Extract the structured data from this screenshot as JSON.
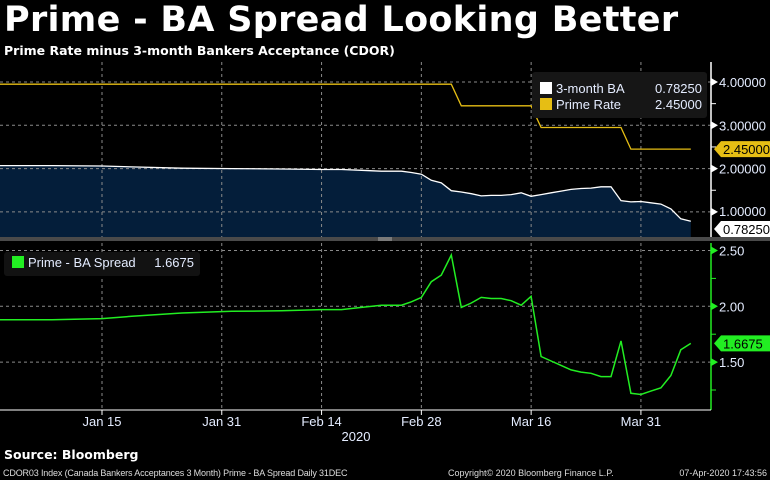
{
  "title": "Prime - BA Spread Looking Better",
  "subtitle": "Prime Rate minus 3-month Bankers Acceptance (CDOR)",
  "source": "Source: Bloomberg",
  "footer": {
    "description": "CDOR03 Index (Canada Bankers Acceptances 3 Month) Prime - BA Spread  Daily 31DEC",
    "copyright": "Copyright© 2020 Bloomberg Finance L.P.",
    "timestamp": "07-Apr-2020 17:43:56"
  },
  "chart_data": [
    {
      "type": "line",
      "panel": "upper",
      "ylim": [
        0.45,
        4.45
      ],
      "y_ticks": [
        "4.00000",
        "3.00000",
        "2.00000",
        "1.00000"
      ],
      "y_tick_values": [
        4,
        3,
        2,
        1
      ],
      "grid": true,
      "legend_position": "top-right",
      "series": [
        {
          "name": "3-month BA",
          "last_label": "0.78250",
          "color": "#ffffff",
          "fill": "#041e3a",
          "points": [
            [
              "2020-01-01",
              2.07
            ],
            [
              "2020-01-08",
              2.07
            ],
            [
              "2020-01-15",
              2.06
            ],
            [
              "2020-01-20",
              2.04
            ],
            [
              "2020-01-27",
              2.01
            ],
            [
              "2020-02-03",
              2.0
            ],
            [
              "2020-02-10",
              1.99
            ],
            [
              "2020-02-14",
              1.98
            ],
            [
              "2020-02-18",
              1.98
            ],
            [
              "2020-02-20",
              1.96
            ],
            [
              "2020-02-24",
              1.94
            ],
            [
              "2020-02-25",
              1.94
            ],
            [
              "2020-02-26",
              1.94
            ],
            [
              "2020-02-27",
              1.91
            ],
            [
              "2020-02-28",
              1.87
            ],
            [
              "2020-03-02",
              1.73
            ],
            [
              "2020-03-03",
              1.67
            ],
            [
              "2020-03-04",
              1.49
            ],
            [
              "2020-03-05",
              1.46
            ],
            [
              "2020-03-06",
              1.42
            ],
            [
              "2020-03-09",
              1.37
            ],
            [
              "2020-03-10",
              1.38
            ],
            [
              "2020-03-11",
              1.38
            ],
            [
              "2020-03-12",
              1.4
            ],
            [
              "2020-03-13",
              1.44
            ],
            [
              "2020-03-16",
              1.36
            ],
            [
              "2020-03-17",
              1.4
            ],
            [
              "2020-03-18",
              1.44
            ],
            [
              "2020-03-19",
              1.48
            ],
            [
              "2020-03-20",
              1.52
            ],
            [
              "2020-03-23",
              1.54
            ],
            [
              "2020-03-24",
              1.55
            ],
            [
              "2020-03-25",
              1.58
            ],
            [
              "2020-03-26",
              1.58
            ],
            [
              "2020-03-27",
              1.26
            ],
            [
              "2020-03-30",
              1.23
            ],
            [
              "2020-03-31",
              1.24
            ],
            [
              "2020-04-01",
              1.21
            ],
            [
              "2020-04-02",
              1.18
            ],
            [
              "2020-04-03",
              1.07
            ],
            [
              "2020-04-06",
              0.84
            ],
            [
              "2020-04-07",
              0.7825
            ]
          ]
        },
        {
          "name": "Prime Rate",
          "last_label": "2.45000",
          "color": "#e6be14",
          "points": [
            [
              "2020-01-01",
              3.95
            ],
            [
              "2020-03-04",
              3.95
            ],
            [
              "2020-03-05",
              3.45
            ],
            [
              "2020-03-16",
              3.45
            ],
            [
              "2020-03-17",
              2.95
            ],
            [
              "2020-03-27",
              2.95
            ],
            [
              "2020-03-30",
              2.45
            ],
            [
              "2020-04-07",
              2.45
            ]
          ]
        }
      ]
    },
    {
      "type": "line",
      "panel": "lower",
      "ylim": [
        1.04,
        2.57
      ],
      "y_ticks": [
        "2.50",
        "2.00",
        "1.50"
      ],
      "y_tick_values": [
        2.5,
        2.0,
        1.5
      ],
      "grid": true,
      "legend_position": "top-left",
      "x_ticks": [
        "Jan 15",
        "Jan 31",
        "Feb 14",
        "Feb 28",
        "Mar 16",
        "Mar 31"
      ],
      "x_tick_dates": [
        "2020-01-15",
        "2020-01-31",
        "2020-02-14",
        "2020-02-28",
        "2020-03-16",
        "2020-03-31"
      ],
      "x_year_label": "2020",
      "series": [
        {
          "name": "Prime - BA Spread",
          "last_label": "1.6675",
          "color": "#22ee22",
          "points": [
            [
              "2020-01-01",
              1.88
            ],
            [
              "2020-01-08",
              1.88
            ],
            [
              "2020-01-15",
              1.89
            ],
            [
              "2020-01-20",
              1.91
            ],
            [
              "2020-01-27",
              1.94
            ],
            [
              "2020-02-03",
              1.955
            ],
            [
              "2020-02-10",
              1.96
            ],
            [
              "2020-02-14",
              1.97
            ],
            [
              "2020-02-18",
              1.97
            ],
            [
              "2020-02-20",
              1.99
            ],
            [
              "2020-02-24",
              2.01
            ],
            [
              "2020-02-25",
              2.01
            ],
            [
              "2020-02-26",
              2.01
            ],
            [
              "2020-02-27",
              2.04
            ],
            [
              "2020-02-28",
              2.08
            ],
            [
              "2020-03-02",
              2.22
            ],
            [
              "2020-03-03",
              2.28
            ],
            [
              "2020-03-04",
              2.46
            ],
            [
              "2020-03-05",
              1.99
            ],
            [
              "2020-03-06",
              2.03
            ],
            [
              "2020-03-09",
              2.08
            ],
            [
              "2020-03-10",
              2.07
            ],
            [
              "2020-03-11",
              2.07
            ],
            [
              "2020-03-12",
              2.05
            ],
            [
              "2020-03-13",
              2.01
            ],
            [
              "2020-03-16",
              2.09
            ],
            [
              "2020-03-17",
              1.55
            ],
            [
              "2020-03-18",
              1.51
            ],
            [
              "2020-03-19",
              1.47
            ],
            [
              "2020-03-20",
              1.43
            ],
            [
              "2020-03-23",
              1.41
            ],
            [
              "2020-03-24",
              1.4
            ],
            [
              "2020-03-25",
              1.37
            ],
            [
              "2020-03-26",
              1.37
            ],
            [
              "2020-03-27",
              1.69
            ],
            [
              "2020-03-30",
              1.22
            ],
            [
              "2020-03-31",
              1.21
            ],
            [
              "2020-04-01",
              1.24
            ],
            [
              "2020-04-02",
              1.27
            ],
            [
              "2020-04-03",
              1.38
            ],
            [
              "2020-04-06",
              1.61
            ],
            [
              "2020-04-07",
              1.6675
            ]
          ]
        }
      ]
    }
  ]
}
